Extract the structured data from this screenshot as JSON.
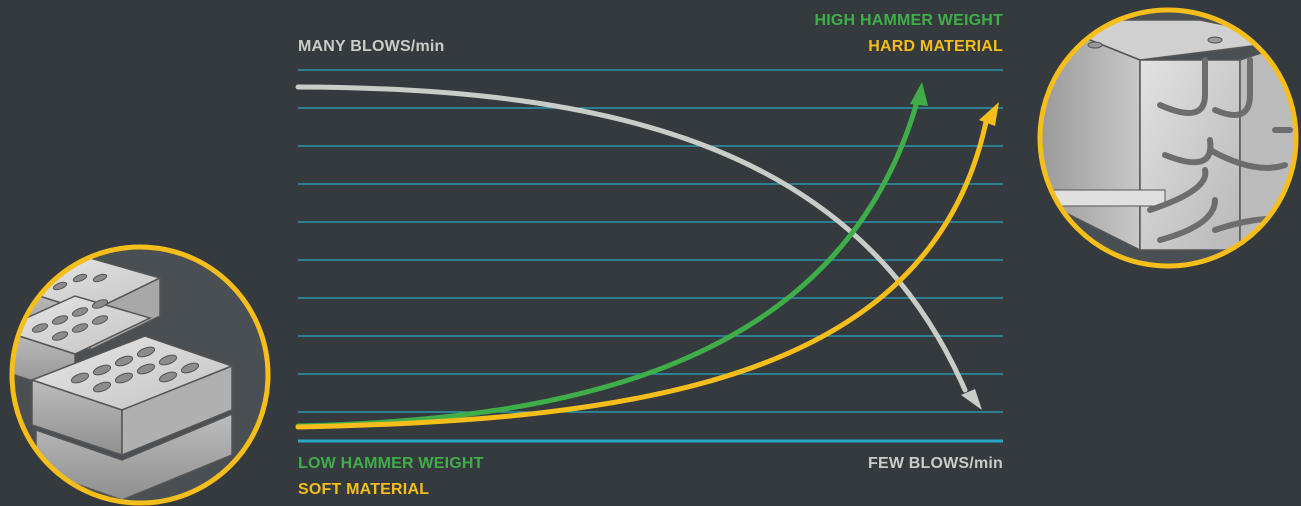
{
  "colors": {
    "background": "#353a3f",
    "grid_line": "#2aa6c4",
    "blows_curve": "#c9cdc7",
    "hammer_weight_curve": "#3fae49",
    "material_curve": "#f6be1a",
    "label_blows": "#c9cdc7",
    "label_hammer_weight": "#3fae49",
    "label_material": "#f6be1a",
    "circle_border": "#f6be1a"
  },
  "labels": {
    "many_blows": "MANY BLOWS/min",
    "few_blows": "FEW BLOWS/min",
    "high_hammer_weight": "HIGH HAMMER WEIGHT",
    "hard_material": "HARD MATERIAL",
    "low_hammer_weight": "LOW HAMMER WEIGHT",
    "soft_material": "SOFT MATERIAL"
  },
  "illustrations": {
    "left": "hollow-brick-stack-icon",
    "right": "reinforced-concrete-block-icon"
  }
}
